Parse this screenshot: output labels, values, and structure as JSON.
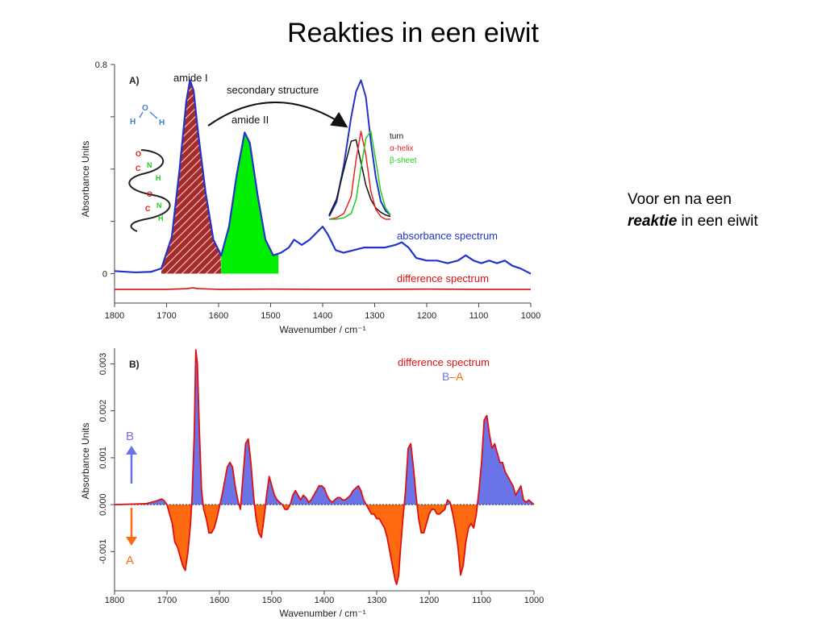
{
  "slide": {
    "title": "Reakties in een eiwit",
    "side_line1": "Voor en na een",
    "side_bold": "reaktie",
    "side_rest": " in een eiwit"
  },
  "chart_data": [
    {
      "panel": "A)",
      "type": "line",
      "xlabel": "Wavenumber / cm⁻¹",
      "ylabel": "Absorbance Units",
      "xlim": [
        1800,
        1000
      ],
      "ylim": [
        -0.1,
        0.8
      ],
      "xticks": [
        "1800",
        "1700",
        "1600",
        "1500",
        "1400",
        "1300",
        "1200",
        "1100",
        "1000"
      ],
      "yticks": [
        "0",
        "0.8"
      ],
      "annotations": [
        "amide I",
        "amide II",
        "secondary structure",
        "turn",
        "α-helix",
        "β-sheet"
      ],
      "molecule_labels": [
        "H",
        "O",
        "H",
        "O",
        "C",
        "N",
        "H",
        "O",
        "C",
        "N",
        "H"
      ],
      "series": [
        {
          "name": "absorbance spectrum",
          "color": "#2233cc",
          "x": [
            1800,
            1760,
            1730,
            1710,
            1690,
            1675,
            1662,
            1655,
            1648,
            1640,
            1625,
            1610,
            1595,
            1580,
            1565,
            1550,
            1540,
            1525,
            1510,
            1495,
            1480,
            1465,
            1455,
            1440,
            1425,
            1410,
            1400,
            1390,
            1375,
            1360,
            1340,
            1320,
            1300,
            1280,
            1260,
            1248,
            1235,
            1220,
            1200,
            1180,
            1160,
            1140,
            1125,
            1110,
            1095,
            1080,
            1065,
            1050,
            1035,
            1020,
            1010,
            1000
          ],
          "y": [
            0.01,
            0.005,
            0.007,
            0.02,
            0.14,
            0.4,
            0.66,
            0.74,
            0.7,
            0.55,
            0.31,
            0.13,
            0.07,
            0.18,
            0.38,
            0.54,
            0.5,
            0.3,
            0.13,
            0.07,
            0.08,
            0.1,
            0.13,
            0.11,
            0.13,
            0.16,
            0.18,
            0.15,
            0.09,
            0.08,
            0.09,
            0.1,
            0.1,
            0.1,
            0.11,
            0.12,
            0.1,
            0.06,
            0.05,
            0.05,
            0.04,
            0.05,
            0.07,
            0.05,
            0.04,
            0.05,
            0.04,
            0.05,
            0.03,
            0.02,
            0.01,
            0.0
          ]
        },
        {
          "name": "difference spectrum",
          "color": "#dd1111",
          "x": [
            1800,
            1700,
            1660,
            1650,
            1640,
            1600,
            1500,
            1400,
            1300,
            1200,
            1100,
            1000
          ],
          "y": [
            -0.06,
            -0.06,
            -0.057,
            -0.054,
            -0.057,
            -0.06,
            -0.059,
            -0.06,
            -0.06,
            -0.059,
            -0.06,
            -0.06
          ]
        }
      ],
      "fills": [
        {
          "name": "amide I",
          "range": [
            1710,
            1595
          ],
          "style": "red-hatched"
        },
        {
          "name": "amide II",
          "range": [
            1595,
            1485
          ],
          "color": "#00ee00"
        }
      ],
      "inset": {
        "x": [
          1400,
          1385,
          1370,
          1355,
          1345,
          1335,
          1325,
          1315,
          1305,
          1295,
          1285,
          1275
        ],
        "series": [
          {
            "name": "envelope",
            "color": "#2233cc",
            "y": [
              0.02,
              0.12,
              0.38,
              0.72,
              0.9,
              0.98,
              0.86,
              0.55,
              0.3,
              0.13,
              0.06,
              0.03
            ]
          },
          {
            "name": "turn",
            "color": "#111111",
            "y": [
              0.03,
              0.14,
              0.35,
              0.55,
              0.56,
              0.4,
              0.24,
              0.14,
              0.08,
              0.05,
              0.03,
              0.02
            ]
          },
          {
            "name": "α-helix",
            "color": "#ee2222",
            "y": [
              0.0,
              0.01,
              0.04,
              0.16,
              0.42,
              0.62,
              0.45,
              0.2,
              0.07,
              0.02,
              0.0,
              0.0
            ]
          },
          {
            "name": "β-sheet",
            "color": "#22cc22",
            "y": [
              0.0,
              0.0,
              0.01,
              0.04,
              0.14,
              0.36,
              0.57,
              0.62,
              0.42,
              0.2,
              0.08,
              0.03
            ]
          }
        ]
      }
    },
    {
      "panel": "B)",
      "type": "area",
      "xlabel": "Wavenumber / cm⁻¹",
      "ylabel": "Absorbance Units",
      "xlim": [
        1800,
        1000
      ],
      "ylim": [
        -0.00175,
        0.0033
      ],
      "xticks": [
        "1800",
        "1700",
        "1600",
        "1500",
        "1400",
        "1300",
        "1200",
        "1100",
        "1000"
      ],
      "yticks": [
        "-0.001",
        "0.000",
        "0.001",
        "0.002",
        "0.003"
      ],
      "legend": "difference spectrum",
      "legend_sub": [
        "B",
        "–",
        "A"
      ],
      "arrow_labels": [
        "B",
        "A"
      ],
      "positive_color": "#6b73e8",
      "negative_color": "#ff6a10",
      "line_color": "#dd1111",
      "series": [
        {
          "name": "difference spectrum",
          "x": [
            1800,
            1740,
            1720,
            1710,
            1705,
            1700,
            1695,
            1690,
            1685,
            1680,
            1675,
            1670,
            1665,
            1660,
            1655,
            1652,
            1648,
            1645,
            1642,
            1638,
            1634,
            1630,
            1625,
            1620,
            1615,
            1610,
            1605,
            1600,
            1595,
            1590,
            1585,
            1580,
            1575,
            1570,
            1565,
            1560,
            1555,
            1550,
            1545,
            1540,
            1535,
            1530,
            1525,
            1520,
            1515,
            1510,
            1505,
            1500,
            1495,
            1490,
            1485,
            1480,
            1475,
            1470,
            1465,
            1460,
            1455,
            1450,
            1445,
            1440,
            1435,
            1430,
            1425,
            1420,
            1415,
            1410,
            1405,
            1400,
            1395,
            1390,
            1385,
            1380,
            1375,
            1370,
            1365,
            1360,
            1355,
            1350,
            1345,
            1340,
            1335,
            1330,
            1325,
            1320,
            1315,
            1310,
            1305,
            1300,
            1295,
            1290,
            1285,
            1280,
            1275,
            1270,
            1265,
            1262,
            1258,
            1255,
            1250,
            1245,
            1240,
            1235,
            1230,
            1225,
            1220,
            1215,
            1210,
            1205,
            1200,
            1195,
            1190,
            1185,
            1180,
            1175,
            1170,
            1165,
            1160,
            1155,
            1150,
            1145,
            1140,
            1135,
            1130,
            1125,
            1120,
            1115,
            1110,
            1105,
            1100,
            1095,
            1090,
            1085,
            1080,
            1075,
            1070,
            1065,
            1060,
            1055,
            1050,
            1045,
            1040,
            1035,
            1030,
            1025,
            1020,
            1015,
            1010,
            1005,
            1000
          ],
          "y": [
            0,
            2e-05,
            8e-05,
            0.00012,
            8e-05,
            0,
            -0.0002,
            -0.0004,
            -0.0008,
            -0.0009,
            -0.0011,
            -0.0013,
            -0.0014,
            -0.001,
            -0.0004,
            0.0002,
            0.0015,
            0.0033,
            0.003,
            0.0015,
            0.0003,
            -0.0001,
            -0.0003,
            -0.0006,
            -0.0006,
            -0.0005,
            -0.0003,
            -5e-05,
            0.0002,
            0.0005,
            0.0008,
            0.0009,
            0.0008,
            0.0004,
            0.0001,
            -0.0001,
            0.0006,
            0.0013,
            0.0014,
            0.0009,
            0.0002,
            -0.0003,
            -0.0006,
            -0.0007,
            -0.0003,
            0.0002,
            0.0006,
            0.0004,
            0.0002,
            0.0001,
            5e-05,
            0,
            -0.0001,
            -0.0001,
            0,
            0.0002,
            0.0003,
            0.0002,
            0.0001,
            0.0002,
            0.00015,
            5e-05,
            0.0001,
            0.0002,
            0.0003,
            0.0004,
            0.0004,
            0.00035,
            0.0002,
            0.0001,
            5e-05,
            0.0001,
            0.00015,
            0.00015,
            0.0001,
            0.0001,
            0.00015,
            0.0002,
            0.0003,
            0.00035,
            0.0004,
            0.0003,
            0.0001,
            0,
            -0.0001,
            -0.0002,
            -0.0002,
            -0.0003,
            -0.0003,
            -0.0004,
            -0.0005,
            -0.0007,
            -0.001,
            -0.0013,
            -0.0016,
            -0.0017,
            -0.0015,
            -0.001,
            -0.0003,
            0.0003,
            0.0012,
            0.0013,
            0.0008,
            0.0002,
            -0.0003,
            -0.0006,
            -0.0006,
            -0.0004,
            -0.0002,
            -0.0001,
            -0.0001,
            -0.0002,
            -0.0002,
            -0.00015,
            -0.0001,
            0.0001,
            5e-05,
            -0.0002,
            -0.0005,
            -0.0009,
            -0.0015,
            -0.0013,
            -0.0008,
            -0.0005,
            -0.0004,
            -0.0005,
            -0.0002,
            0.0003,
            0.0009,
            0.0018,
            0.0019,
            0.0015,
            0.0012,
            0.0013,
            0.0011,
            0.0009,
            0.0009,
            0.0007,
            0.0006,
            0.0005,
            0.0004,
            0.0002,
            0.0003,
            0.0004,
            0.0001,
            5e-05,
            0.0001,
            5e-05,
            0
          ]
        }
      ]
    }
  ]
}
